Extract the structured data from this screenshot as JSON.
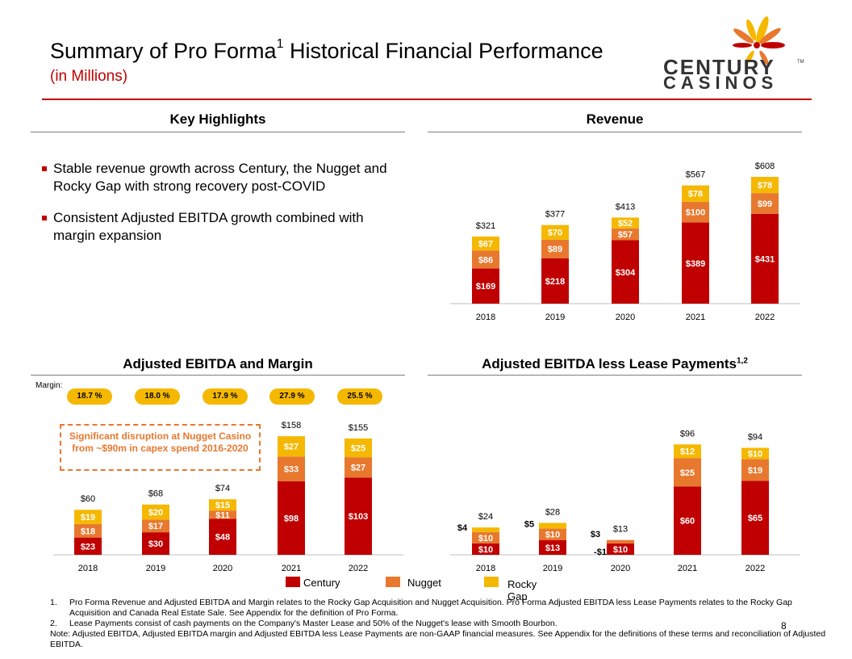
{
  "header": {
    "title": "Summary of Pro Forma",
    "title_sup": "1",
    "title_rest": " Historical Financial Performance",
    "subtitle": "(in Millions)"
  },
  "logo": {
    "line1": "CENTURY",
    "line2": "CASINOS",
    "tm": "TM",
    "colors": [
      "#c00000",
      "#e8782e",
      "#f5b800"
    ]
  },
  "key_highlights": {
    "heading": "Key Highlights",
    "bullets": [
      "Stable revenue growth across Century, the Nugget and Rocky Gap with  strong recovery post-COVID",
      "Consistent Adjusted EBITDA growth combined with margin expansion"
    ]
  },
  "margin": {
    "label": "Margin:",
    "values": [
      "18.7 %",
      "18.0 %",
      "17.9 %",
      "27.9 %",
      "25.5 %"
    ]
  },
  "callout": {
    "text": "Significant disruption at Nugget Casino from ~$90m in capex spend 2016-2020"
  },
  "legend": {
    "items": [
      {
        "label": "Century",
        "color": "#c00000"
      },
      {
        "label": "Nugget",
        "color": "#e8782e"
      },
      {
        "label": "Rocky Gap",
        "color": "#f5b800"
      }
    ]
  },
  "footnotes": {
    "f1_num": "1.",
    "f1": "Pro Forma Revenue and Adjusted EBITDA and Margin relates to the Rocky Gap Acquisition and Nugget Acquisition. Pro Forma Adjusted EBITDA less Lease Payments relates to the Rocky Gap Acquisition and Canada Real Estate Sale. See Appendix for the definition of Pro Forma.",
    "f2_num": "2.",
    "f2": "Lease Payments consist of cash payments on the Company's Master Lease and 50% of the Nugget's lease with Smooth Bourbon.",
    "note": "Note: Adjusted EBITDA,  Adjusted EBITDA  margin and Adjusted EBITDA less Lease Payments are non-GAAP financial measures. See Appendix for the definitions of these terms and reconciliation of Adjusted EBITDA."
  },
  "page_number": "8",
  "chart_data": [
    {
      "id": "revenue",
      "type": "bar",
      "stacked": true,
      "title": "Revenue",
      "categories": [
        "2018",
        "2019",
        "2020",
        "2021",
        "2022"
      ],
      "series": [
        {
          "name": "Century",
          "color": "#c00000",
          "values": [
            169,
            218,
            304,
            389,
            431
          ],
          "labels": [
            "$169",
            "$218",
            "$304",
            "$389",
            "$431"
          ]
        },
        {
          "name": "Nugget",
          "color": "#e8782e",
          "values": [
            86,
            89,
            57,
            100,
            99
          ],
          "labels": [
            "$86",
            "$89",
            "$57",
            "$100",
            "$99"
          ]
        },
        {
          "name": "Rocky Gap",
          "color": "#f5b800",
          "values": [
            67,
            70,
            52,
            78,
            78
          ],
          "labels": [
            "$67",
            "$70",
            "$52",
            "$78",
            "$78"
          ]
        }
      ],
      "totals": [
        "$321",
        "$377",
        "$413",
        "$567",
        "$608"
      ],
      "ylim": [
        0,
        640
      ]
    },
    {
      "id": "ebitda",
      "type": "bar",
      "stacked": true,
      "title": "Adjusted EBITDA and Margin",
      "categories": [
        "2018",
        "2019",
        "2020",
        "2021",
        "2022"
      ],
      "series": [
        {
          "name": "Century",
          "color": "#c00000",
          "values": [
            23,
            30,
            48,
            98,
            103
          ],
          "labels": [
            "$23",
            "$30",
            "$48",
            "$98",
            "$103"
          ]
        },
        {
          "name": "Nugget",
          "color": "#e8782e",
          "values": [
            18,
            17,
            11,
            33,
            27
          ],
          "labels": [
            "$18",
            "$17",
            "$11",
            "$33",
            "$27"
          ]
        },
        {
          "name": "Rocky Gap",
          "color": "#f5b800",
          "values": [
            19,
            20,
            15,
            27,
            25
          ],
          "labels": [
            "$19",
            "$20",
            "$15",
            "$27",
            "$25"
          ]
        }
      ],
      "totals": [
        "$60",
        "$68",
        "$74",
        "$158",
        "$155"
      ],
      "ylim": [
        0,
        170
      ]
    },
    {
      "id": "lease",
      "type": "bar",
      "stacked": true,
      "title": "Adjusted EBITDA less Lease Payments",
      "title_sup": "1,2",
      "categories": [
        "2018",
        "2019",
        "2020",
        "2021",
        "2022"
      ],
      "series": [
        {
          "name": "Century",
          "color": "#c00000",
          "values": [
            10,
            13,
            10,
            60,
            65
          ],
          "labels": [
            "$10",
            "$13",
            "$10",
            "$60",
            "$65"
          ]
        },
        {
          "name": "Nugget",
          "color": "#e8782e",
          "values": [
            10,
            10,
            3,
            25,
            19
          ],
          "labels": [
            "$10",
            "$10",
            "$3",
            "$25",
            "$19"
          ]
        },
        {
          "name": "Rocky Gap",
          "color": "#f5b800",
          "values": [
            4,
            5,
            -1,
            12,
            10
          ],
          "labels": [
            "$4",
            "$5",
            "-$1",
            "$12",
            "$10"
          ]
        }
      ],
      "totals": [
        "$24",
        "$28",
        "$13",
        "$96",
        "$94"
      ],
      "ylim": [
        0,
        105
      ]
    }
  ]
}
